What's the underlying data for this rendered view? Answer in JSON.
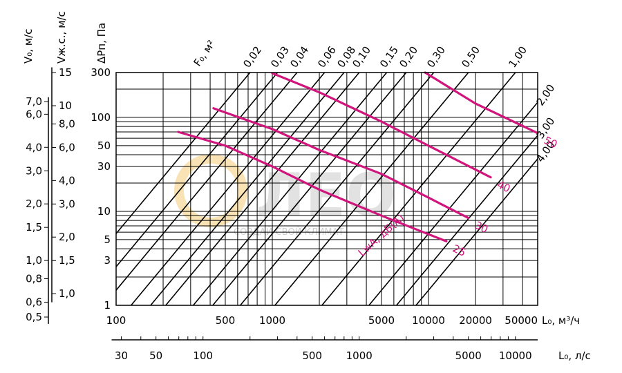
{
  "chart_data": {
    "type": "line",
    "x_axis": {
      "label": "L₀, м³/ч",
      "range": [
        100,
        50000
      ],
      "scale": "log",
      "ticks": [
        {
          "v": 100,
          "label": "100"
        },
        {
          "v": 500,
          "label": "500"
        },
        {
          "v": 1000,
          "label": "1000"
        },
        {
          "v": 5000,
          "label": "5000"
        },
        {
          "v": 10000,
          "label": "10000"
        },
        {
          "v": 20000,
          "label": "20000"
        },
        {
          "v": 50000,
          "label": "50000"
        }
      ]
    },
    "x2_axis": {
      "label": "L₀, л/с",
      "scale": "log",
      "ticks": [
        {
          "v": 30,
          "label": "30"
        },
        {
          "v": 50,
          "label": "50"
        },
        {
          "v": 100,
          "label": "100"
        },
        {
          "v": 500,
          "label": "500"
        },
        {
          "v": 1000,
          "label": "1000"
        },
        {
          "v": 5000,
          "label": "5000"
        },
        {
          "v": 10000,
          "label": "10000"
        }
      ]
    },
    "y_axis": {
      "label": "ΔPп, Па",
      "range": [
        1,
        300
      ],
      "scale": "log",
      "ticks": [
        {
          "v": 1,
          "label": "1"
        },
        {
          "v": 3,
          "label": "3"
        },
        {
          "v": 5,
          "label": "5"
        },
        {
          "v": 10,
          "label": "10"
        },
        {
          "v": 30,
          "label": "30"
        },
        {
          "v": 50,
          "label": "50"
        },
        {
          "v": 100,
          "label": "100"
        },
        {
          "v": 300,
          "label": "300"
        }
      ]
    },
    "v0_axis": {
      "label": "V₀, м/с",
      "ticks": [
        {
          "v": 7.0,
          "label": "7,0"
        },
        {
          "v": 6.0,
          "label": "6,0"
        },
        {
          "v": 4.0,
          "label": "4,0"
        },
        {
          "v": 3.0,
          "label": "3,0"
        },
        {
          "v": 2.0,
          "label": "2,0"
        },
        {
          "v": 1.5,
          "label": "1,5"
        },
        {
          "v": 1.0,
          "label": "1,0"
        },
        {
          "v": 0.8,
          "label": "0,8"
        },
        {
          "v": 0.6,
          "label": "0,6"
        },
        {
          "v": 0.5,
          "label": "0,5"
        }
      ]
    },
    "vjs_axis": {
      "label": "Vж.с., м/с",
      "ticks": [
        {
          "v": 15,
          "label": "15"
        },
        {
          "v": 10,
          "label": "10"
        },
        {
          "v": 8.0,
          "label": "8,0"
        },
        {
          "v": 6.0,
          "label": "6,0"
        },
        {
          "v": 4.0,
          "label": "4,0"
        },
        {
          "v": 3.0,
          "label": "3,0"
        },
        {
          "v": 2.0,
          "label": "2,0"
        },
        {
          "v": 1.5,
          "label": "1,5"
        },
        {
          "v": 1.0,
          "label": "1,0"
        }
      ]
    },
    "area_lines": {
      "label": "F₀, м²",
      "values": [
        {
          "f": 0.02,
          "label": "0,02"
        },
        {
          "f": 0.03,
          "label": "0,03"
        },
        {
          "f": 0.04,
          "label": "0,04"
        },
        {
          "f": 0.06,
          "label": "0,06"
        },
        {
          "f": 0.08,
          "label": "0,08"
        },
        {
          "f": 0.1,
          "label": "0,10"
        },
        {
          "f": 0.15,
          "label": "0,15"
        },
        {
          "f": 0.2,
          "label": "0,20"
        },
        {
          "f": 0.3,
          "label": "0,30"
        },
        {
          "f": 0.5,
          "label": "0,50"
        },
        {
          "f": 1.0,
          "label": "1,00"
        },
        {
          "f": 2.0,
          "label": "2,00"
        },
        {
          "f": 3.0,
          "label": "3,00"
        },
        {
          "f": 4.0,
          "label": "4,00"
        }
      ]
    },
    "noise_label": "LwA, дБ(А)",
    "noise_curves": [
      {
        "level": "25",
        "color": "#d0167c",
        "points": [
          [
            250,
            70
          ],
          [
            500,
            50
          ],
          [
            1000,
            30
          ],
          [
            2000,
            17
          ],
          [
            5000,
            9
          ],
          [
            13000,
            4.8
          ]
        ]
      },
      {
        "level": "30",
        "color": "#d0167c",
        "points": [
          [
            420,
            125
          ],
          [
            1000,
            75
          ],
          [
            2000,
            45
          ],
          [
            5000,
            25
          ],
          [
            10000,
            14
          ],
          [
            18000,
            8.5
          ]
        ]
      },
      {
        "level": "40",
        "color": "#d0167c",
        "points": [
          [
            1000,
            295
          ],
          [
            2000,
            185
          ],
          [
            5000,
            90
          ],
          [
            10000,
            50
          ],
          [
            25000,
            23
          ]
        ]
      },
      {
        "level": "50",
        "color": "#d0167c",
        "points": [
          [
            9500,
            300
          ],
          [
            20000,
            140
          ],
          [
            50000,
            68
          ]
        ]
      }
    ],
    "watermark": {
      "text": "ЛЕО",
      "subtitle": "СОЗДАЙ СВОЙ КЛИМАТ"
    }
  }
}
